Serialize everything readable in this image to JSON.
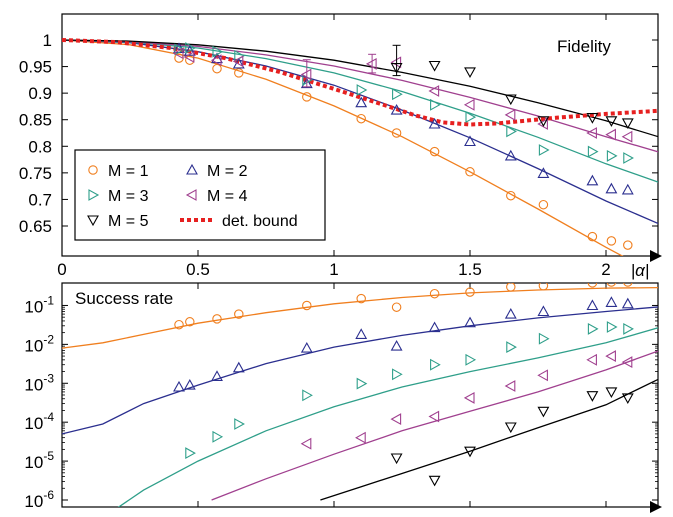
{
  "chart_data": [
    {
      "type": "scatter",
      "title": "",
      "annotation": "Fidelity",
      "xlabel": "|α|",
      "ylabel": "",
      "xlim": [
        0,
        2.25
      ],
      "ylim": [
        0.61,
        1.035
      ],
      "xticks": [
        {
          "v": 0,
          "label": "0"
        },
        {
          "v": 0.5,
          "label": "0.5"
        },
        {
          "v": 1,
          "label": "1"
        },
        {
          "v": 1.5,
          "label": "1.5"
        },
        {
          "v": 2,
          "label": "2"
        }
      ],
      "yticks": [
        {
          "v": 1,
          "label": "1"
        },
        {
          "v": 0.95,
          "label": "0.95"
        },
        {
          "v": 0.9,
          "label": "0.9"
        },
        {
          "v": 0.85,
          "label": "0.85"
        },
        {
          "v": 0.8,
          "label": "0.8"
        },
        {
          "v": 0.75,
          "label": "0.75"
        },
        {
          "v": 0.7,
          "label": "0.7"
        },
        {
          "v": 0.65,
          "label": "0.65"
        }
      ],
      "legend": {
        "placement": "bottom-left",
        "entries": [
          {
            "label": "M = 1",
            "series": "M1"
          },
          {
            "label": "M = 2",
            "series": "M2"
          },
          {
            "label": "M = 3",
            "series": "M3"
          },
          {
            "label": "M = 4",
            "series": "M4"
          },
          {
            "label": "M = 5",
            "series": "M5"
          },
          {
            "label": "det. bound",
            "series": "bound"
          }
        ]
      },
      "series": [
        {
          "key": "M1",
          "name": "M = 1",
          "color": "#f07f1f",
          "marker": "circle",
          "curve_x": [
            0,
            0.25,
            0.5,
            0.75,
            1,
            1.25,
            1.5,
            1.75,
            2,
            2.2
          ],
          "curve_y": [
            1.0,
            0.991,
            0.966,
            0.926,
            0.876,
            0.818,
            0.752,
            0.682,
            0.61,
            0.555
          ],
          "points": [
            [
              0.43,
              0.966
            ],
            [
              0.47,
              0.962
            ],
            [
              0.57,
              0.946
            ],
            [
              0.65,
              0.938
            ],
            [
              0.9,
              0.893
            ],
            [
              1.1,
              0.852
            ],
            [
              1.23,
              0.825
            ],
            [
              1.37,
              0.79
            ],
            [
              1.5,
              0.752
            ],
            [
              1.65,
              0.707
            ],
            [
              1.77,
              0.69
            ],
            [
              1.95,
              0.63
            ],
            [
              2.02,
              0.622
            ],
            [
              2.08,
              0.614
            ]
          ]
        },
        {
          "key": "M2",
          "name": "M = 2",
          "color": "#2b2f8f",
          "marker": "triangle-up",
          "curve_x": [
            0,
            0.25,
            0.5,
            0.75,
            1,
            1.25,
            1.5,
            1.75,
            2,
            2.25
          ],
          "curve_y": [
            1.0,
            0.995,
            0.978,
            0.951,
            0.915,
            0.868,
            0.816,
            0.758,
            0.697,
            0.642
          ],
          "points": [
            [
              0.43,
              0.984
            ],
            [
              0.47,
              0.979
            ],
            [
              0.57,
              0.965
            ],
            [
              0.65,
              0.955
            ],
            [
              0.9,
              0.918
            ],
            [
              1.1,
              0.882
            ],
            [
              1.23,
              0.868
            ],
            [
              1.37,
              0.842
            ],
            [
              1.5,
              0.809
            ],
            [
              1.65,
              0.782
            ],
            [
              1.77,
              0.749
            ],
            [
              1.95,
              0.735
            ],
            [
              2.02,
              0.72
            ],
            [
              2.08,
              0.718
            ]
          ]
        },
        {
          "key": "M3",
          "name": "M = 3",
          "color": "#2f9f8a",
          "marker": "triangle-right",
          "curve_x": [
            0,
            0.25,
            0.5,
            0.75,
            1,
            1.25,
            1.5,
            1.75,
            2,
            2.25
          ],
          "curve_y": [
            1.0,
            0.996,
            0.985,
            0.965,
            0.938,
            0.903,
            0.862,
            0.817,
            0.767,
            0.722
          ],
          "points": [
            [
              0.43,
              0.982
            ],
            [
              0.47,
              0.985
            ],
            [
              0.57,
              0.978
            ],
            [
              0.65,
              0.97
            ],
            [
              0.9,
              0.925
            ],
            [
              1.1,
              0.906
            ],
            [
              1.23,
              0.898
            ],
            [
              1.37,
              0.878
            ],
            [
              1.5,
              0.855
            ],
            [
              1.65,
              0.828
            ],
            [
              1.77,
              0.793
            ],
            [
              1.95,
              0.79
            ],
            [
              2.02,
              0.782
            ],
            [
              2.08,
              0.778
            ]
          ]
        },
        {
          "key": "M4",
          "name": "M = 4",
          "color": "#a0408f",
          "marker": "triangle-left",
          "curve_x": [
            0,
            0.25,
            0.5,
            0.75,
            1,
            1.25,
            1.5,
            1.75,
            2,
            2.25
          ],
          "curve_y": [
            1.0,
            0.997,
            0.988,
            0.972,
            0.951,
            0.924,
            0.892,
            0.857,
            0.818,
            0.781
          ],
          "points": [
            [
              0.43,
              0.975
            ],
            [
              0.47,
              0.968
            ],
            [
              0.57,
              0.962
            ],
            [
              0.65,
              0.96
            ],
            [
              0.9,
              0.935
            ],
            [
              1.14,
              0.955
            ],
            [
              1.23,
              0.958
            ],
            [
              1.37,
              0.904
            ],
            [
              1.5,
              0.878
            ],
            [
              1.65,
              0.859
            ],
            [
              1.77,
              0.842
            ],
            [
              1.95,
              0.825
            ],
            [
              2.02,
              0.822
            ],
            [
              2.08,
              0.818
            ]
          ]
        },
        {
          "key": "M5",
          "name": "M = 5",
          "color": "#000000",
          "marker": "triangle-down",
          "curve_x": [
            0,
            0.25,
            0.5,
            0.75,
            1,
            1.25,
            1.5,
            1.75,
            2,
            2.25
          ],
          "curve_y": [
            1.0,
            0.998,
            0.991,
            0.979,
            0.962,
            0.939,
            0.913,
            0.882,
            0.848,
            0.809
          ],
          "points": [
            [
              1.23,
              0.948
            ],
            [
              1.37,
              0.952
            ],
            [
              1.5,
              0.94
            ],
            [
              1.65,
              0.889
            ],
            [
              1.77,
              0.848
            ],
            [
              1.95,
              0.854
            ],
            [
              2.02,
              0.848
            ],
            [
              2.08,
              0.844
            ]
          ]
        },
        {
          "key": "bound",
          "name": "det. bound",
          "color": "#e62020",
          "marker": "none",
          "curve_x": [
            0,
            0.2,
            0.4,
            0.6,
            0.8,
            1,
            1.2,
            1.3,
            1.4,
            1.5,
            1.6,
            1.7,
            1.8,
            1.9,
            2,
            2.1,
            2.2,
            2.25
          ],
          "curve_y": [
            1.0,
            0.996,
            0.985,
            0.966,
            0.94,
            0.908,
            0.875,
            0.858,
            0.845,
            0.841,
            0.843,
            0.848,
            0.853,
            0.857,
            0.861,
            0.864,
            0.867,
            0.868
          ]
        }
      ],
      "error_bars": [
        {
          "series": "M4",
          "x": 0.9,
          "y": 0.935,
          "low": 0.912,
          "high": 0.963
        },
        {
          "series": "M4",
          "x": 1.14,
          "y": 0.955,
          "low": 0.938,
          "high": 0.973
        },
        {
          "series": "M5",
          "x": 1.23,
          "y": 0.948,
          "low": 0.933,
          "high": 0.99
        }
      ]
    },
    {
      "type": "scatter",
      "title": "",
      "annotation": "Success rate",
      "xlabel": "",
      "ylabel": "",
      "yscale": "log",
      "xlim": [
        0,
        2.25
      ],
      "ylim": [
        1e-06,
        1.0
      ],
      "yticks": [
        {
          "v": -1,
          "base": "10",
          "exp": "-1"
        },
        {
          "v": -2,
          "base": "10",
          "exp": "-2"
        },
        {
          "v": -3,
          "base": "10",
          "exp": "-3"
        },
        {
          "v": -4,
          "base": "10",
          "exp": "-4"
        },
        {
          "v": -5,
          "base": "10",
          "exp": "-5"
        },
        {
          "v": -6,
          "base": "10",
          "exp": "-6"
        }
      ],
      "series": [
        {
          "key": "M1",
          "name": "M = 1",
          "color": "#f07f1f",
          "marker": "circle",
          "curve_x": [
            0,
            0.15,
            0.3,
            0.5,
            0.75,
            1,
            1.25,
            1.5,
            1.75,
            2,
            2.25
          ],
          "curve_y": [
            0.008,
            0.011,
            0.018,
            0.035,
            0.065,
            0.11,
            0.16,
            0.21,
            0.25,
            0.28,
            0.29
          ],
          "points": [
            [
              0.43,
              0.032
            ],
            [
              0.47,
              0.038
            ],
            [
              0.57,
              0.045
            ],
            [
              0.65,
              0.06
            ],
            [
              0.9,
              0.1
            ],
            [
              1.1,
              0.15
            ],
            [
              1.23,
              0.09
            ],
            [
              1.37,
              0.2
            ],
            [
              1.5,
              0.22
            ],
            [
              1.65,
              0.3
            ],
            [
              1.77,
              0.32
            ],
            [
              1.95,
              0.38
            ],
            [
              2.02,
              0.4
            ],
            [
              2.08,
              0.4
            ]
          ]
        },
        {
          "key": "M2",
          "name": "M = 2",
          "color": "#2b2f8f",
          "marker": "triangle-up",
          "curve_x": [
            0,
            0.15,
            0.3,
            0.5,
            0.75,
            1,
            1.25,
            1.5,
            1.75,
            2,
            2.25
          ],
          "curve_y": [
            5e-05,
            9e-05,
            0.0003,
            0.0009,
            0.0032,
            0.0085,
            0.017,
            0.03,
            0.048,
            0.07,
            0.1
          ],
          "points": [
            [
              0.43,
              0.0008
            ],
            [
              0.47,
              0.0009
            ],
            [
              0.57,
              0.0015
            ],
            [
              0.65,
              0.0025
            ],
            [
              0.9,
              0.008
            ],
            [
              1.1,
              0.018
            ],
            [
              1.23,
              0.009
            ],
            [
              1.37,
              0.027
            ],
            [
              1.5,
              0.036
            ],
            [
              1.65,
              0.06
            ],
            [
              1.77,
              0.07
            ],
            [
              1.95,
              0.1
            ],
            [
              2.02,
              0.12
            ],
            [
              2.08,
              0.11
            ]
          ]
        },
        {
          "key": "M3",
          "name": "M = 3",
          "color": "#2f9f8a",
          "marker": "triangle-right",
          "curve_x": [
            0.2,
            0.3,
            0.5,
            0.75,
            1,
            1.25,
            1.5,
            1.75,
            2,
            2.25
          ],
          "curve_y": [
            6e-07,
            1.8e-06,
            1e-05,
            6e-05,
            0.00025,
            0.0008,
            0.002,
            0.0045,
            0.011,
            0.035
          ],
          "points": [
            [
              0.47,
              1.6e-05
            ],
            [
              0.57,
              4.2e-05
            ],
            [
              0.65,
              9e-05
            ],
            [
              0.9,
              0.00049
            ],
            [
              1.1,
              0.00098
            ],
            [
              1.23,
              0.0017
            ],
            [
              1.37,
              0.003
            ],
            [
              1.5,
              0.004
            ],
            [
              1.65,
              0.0085
            ],
            [
              1.77,
              0.014
            ],
            [
              1.95,
              0.025
            ],
            [
              2.02,
              0.028
            ],
            [
              2.08,
              0.025
            ]
          ]
        },
        {
          "key": "M4",
          "name": "M = 4",
          "color": "#a0408f",
          "marker": "triangle-left",
          "curve_x": [
            0.55,
            0.75,
            1,
            1.25,
            1.5,
            1.75,
            2,
            2.25
          ],
          "curve_y": [
            1e-06,
            3.5e-06,
            1.5e-05,
            6e-05,
            0.00019,
            0.0006,
            0.0022,
            0.0095
          ],
          "points": [
            [
              0.9,
              2.8e-05
            ],
            [
              1.1,
              4e-05
            ],
            [
              1.23,
              0.00012
            ],
            [
              1.37,
              0.00014
            ],
            [
              1.5,
              0.00042
            ],
            [
              1.65,
              0.00085
            ],
            [
              1.77,
              0.0016
            ],
            [
              1.95,
              0.004
            ],
            [
              2.02,
              0.005
            ],
            [
              2.08,
              0.0035
            ]
          ]
        },
        {
          "key": "M5",
          "name": "M = 5",
          "color": "#000000",
          "marker": "triangle-down",
          "curve_x": [
            0.95,
            1.1,
            1.25,
            1.5,
            1.75,
            2,
            2.25
          ],
          "curve_y": [
            1e-06,
            2.2e-06,
            4.8e-06,
            1.8e-05,
            7.2e-05,
            0.00028,
            0.002
          ],
          "points": [
            [
              1.23,
              1.2e-05
            ],
            [
              1.37,
              3.2e-06
            ],
            [
              1.5,
              1.8e-05
            ],
            [
              1.65,
              7.5e-05
            ],
            [
              1.77,
              0.00019
            ],
            [
              1.95,
              0.00048
            ],
            [
              2.02,
              0.0006
            ],
            [
              2.08,
              0.00042
            ]
          ]
        }
      ]
    }
  ]
}
